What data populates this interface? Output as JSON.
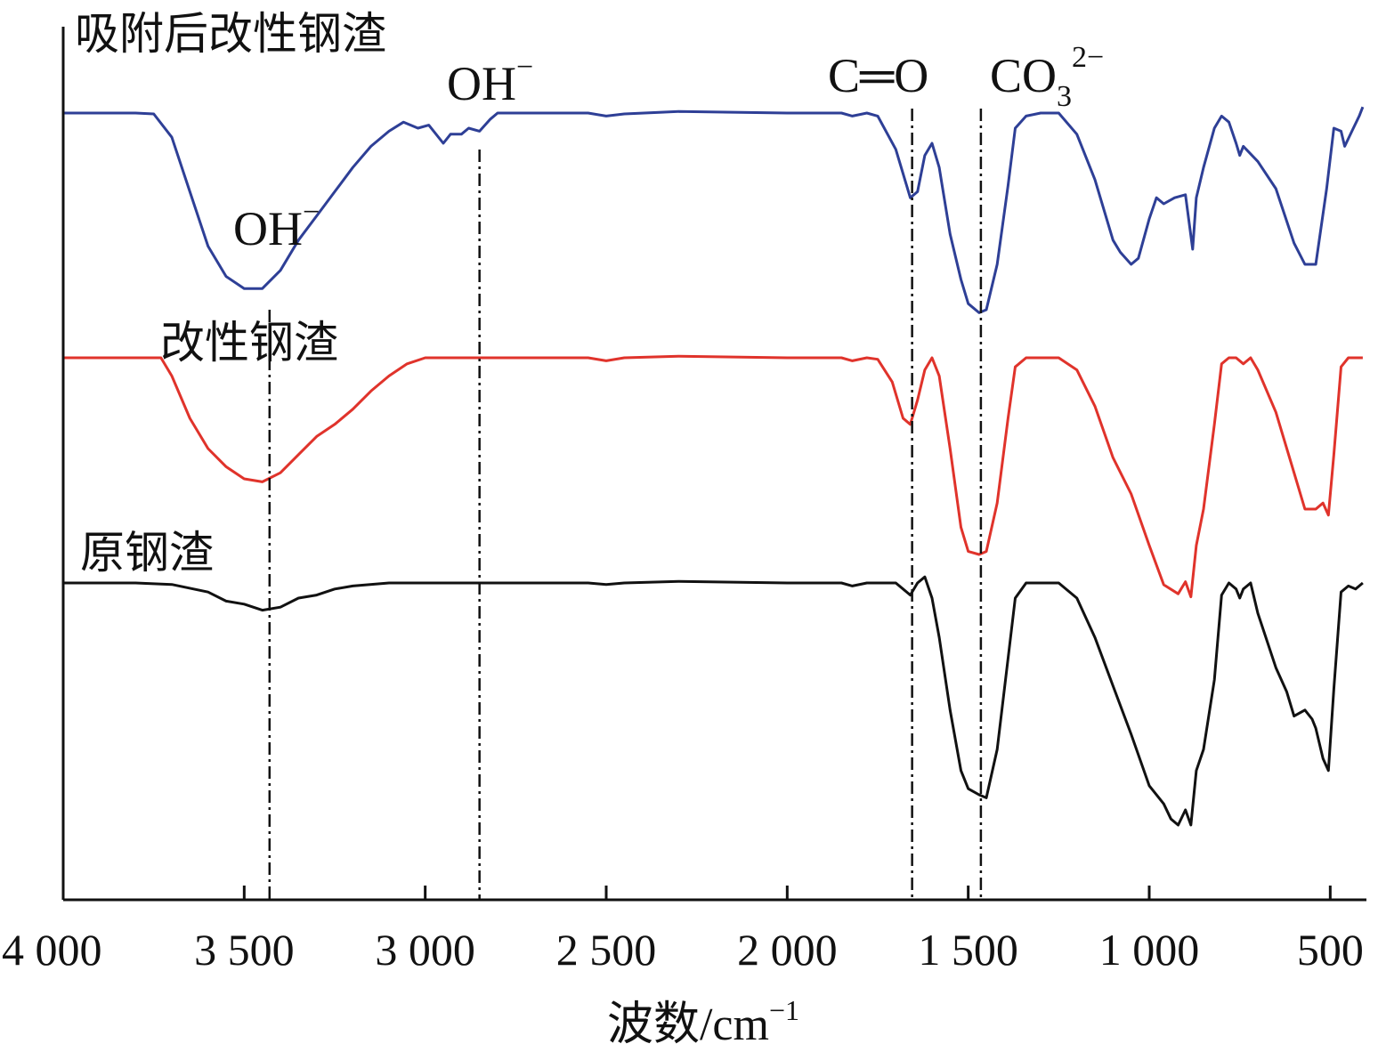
{
  "chart_data": {
    "type": "line",
    "title": "",
    "xlabel": "波数/cm⁻¹",
    "xlabel_base": "波数/cm",
    "xlabel_sup": "−1",
    "ylabel": "",
    "xlim": [
      4000,
      400
    ],
    "x_reversed": true,
    "x_ticks": [
      4000,
      3500,
      3000,
      2500,
      2000,
      1500,
      1000,
      500
    ],
    "x_tick_labels": [
      "4 000",
      "3 500",
      "3 000",
      "2 500",
      "2 000",
      "1 500",
      "1 000",
      "500"
    ],
    "y_ticks_shown": false,
    "grid": false,
    "series": [
      {
        "name": "吸附后改性钢渣",
        "color": "#2e3f96",
        "points": [
          [
            4000,
            0
          ],
          [
            3800,
            0
          ],
          [
            3750,
            -0.3
          ],
          [
            3700,
            -8
          ],
          [
            3650,
            -26
          ],
          [
            3600,
            -44
          ],
          [
            3550,
            -54
          ],
          [
            3500,
            -58
          ],
          [
            3450,
            -58
          ],
          [
            3400,
            -52
          ],
          [
            3350,
            -42
          ],
          [
            3300,
            -34
          ],
          [
            3250,
            -26
          ],
          [
            3200,
            -18
          ],
          [
            3150,
            -11
          ],
          [
            3100,
            -6
          ],
          [
            3060,
            -3
          ],
          [
            3020,
            -5
          ],
          [
            2990,
            -4
          ],
          [
            2950,
            -10
          ],
          [
            2930,
            -7
          ],
          [
            2900,
            -7
          ],
          [
            2880,
            -5
          ],
          [
            2850,
            -6
          ],
          [
            2820,
            -2
          ],
          [
            2800,
            0
          ],
          [
            2700,
            0
          ],
          [
            2550,
            0
          ],
          [
            2500,
            -1
          ],
          [
            2450,
            -0.3
          ],
          [
            2300,
            0.5
          ],
          [
            2000,
            0
          ],
          [
            1850,
            0
          ],
          [
            1820,
            -1
          ],
          [
            1780,
            0
          ],
          [
            1750,
            -1
          ],
          [
            1700,
            -12
          ],
          [
            1660,
            -28
          ],
          [
            1640,
            -26
          ],
          [
            1620,
            -14
          ],
          [
            1600,
            -10
          ],
          [
            1580,
            -18
          ],
          [
            1550,
            -40
          ],
          [
            1520,
            -55
          ],
          [
            1500,
            -63
          ],
          [
            1470,
            -66
          ],
          [
            1450,
            -65
          ],
          [
            1420,
            -50
          ],
          [
            1390,
            -24
          ],
          [
            1370,
            -5
          ],
          [
            1340,
            -1
          ],
          [
            1300,
            0
          ],
          [
            1250,
            0
          ],
          [
            1200,
            -7
          ],
          [
            1150,
            -22
          ],
          [
            1100,
            -42
          ],
          [
            1080,
            -46
          ],
          [
            1050,
            -50
          ],
          [
            1030,
            -48
          ],
          [
            1000,
            -35
          ],
          [
            980,
            -28
          ],
          [
            960,
            -30
          ],
          [
            930,
            -28
          ],
          [
            900,
            -27
          ],
          [
            880,
            -45
          ],
          [
            870,
            -28
          ],
          [
            850,
            -18
          ],
          [
            820,
            -5
          ],
          [
            800,
            -1
          ],
          [
            780,
            -3
          ],
          [
            760,
            -10
          ],
          [
            750,
            -14
          ],
          [
            740,
            -11
          ],
          [
            700,
            -16
          ],
          [
            650,
            -25
          ],
          [
            600,
            -43
          ],
          [
            570,
            -50
          ],
          [
            540,
            -50
          ],
          [
            510,
            -25
          ],
          [
            490,
            -5
          ],
          [
            470,
            -6
          ],
          [
            460,
            -11
          ],
          [
            440,
            -6
          ],
          [
            420,
            -1
          ],
          [
            410,
            2
          ]
        ]
      },
      {
        "name": "改性钢渣",
        "color": "#e0332b",
        "points": [
          [
            4000,
            0
          ],
          [
            3800,
            0
          ],
          [
            3730,
            0
          ],
          [
            3700,
            -6
          ],
          [
            3650,
            -20
          ],
          [
            3600,
            -30
          ],
          [
            3550,
            -36
          ],
          [
            3500,
            -40
          ],
          [
            3450,
            -41
          ],
          [
            3400,
            -38
          ],
          [
            3350,
            -32
          ],
          [
            3300,
            -26
          ],
          [
            3250,
            -22
          ],
          [
            3200,
            -17
          ],
          [
            3150,
            -11
          ],
          [
            3100,
            -6
          ],
          [
            3050,
            -2
          ],
          [
            3000,
            0
          ],
          [
            2950,
            0
          ],
          [
            2800,
            0
          ],
          [
            2600,
            0
          ],
          [
            2550,
            0
          ],
          [
            2500,
            -1
          ],
          [
            2450,
            0
          ],
          [
            2300,
            0.5
          ],
          [
            2000,
            0
          ],
          [
            1850,
            0
          ],
          [
            1820,
            -1
          ],
          [
            1780,
            0
          ],
          [
            1750,
            -0.5
          ],
          [
            1710,
            -8
          ],
          [
            1680,
            -20
          ],
          [
            1660,
            -22
          ],
          [
            1640,
            -14
          ],
          [
            1620,
            -4
          ],
          [
            1600,
            0
          ],
          [
            1580,
            -6
          ],
          [
            1550,
            -30
          ],
          [
            1520,
            -56
          ],
          [
            1500,
            -64
          ],
          [
            1470,
            -65
          ],
          [
            1450,
            -64
          ],
          [
            1420,
            -48
          ],
          [
            1390,
            -20
          ],
          [
            1370,
            -3
          ],
          [
            1340,
            0
          ],
          [
            1300,
            0
          ],
          [
            1250,
            0
          ],
          [
            1200,
            -4
          ],
          [
            1150,
            -16
          ],
          [
            1100,
            -33
          ],
          [
            1050,
            -45
          ],
          [
            1000,
            -62
          ],
          [
            960,
            -75
          ],
          [
            920,
            -78
          ],
          [
            900,
            -74
          ],
          [
            885,
            -79
          ],
          [
            870,
            -62
          ],
          [
            850,
            -50
          ],
          [
            820,
            -22
          ],
          [
            800,
            -2
          ],
          [
            780,
            0
          ],
          [
            760,
            0
          ],
          [
            740,
            -2
          ],
          [
            720,
            0
          ],
          [
            700,
            -4
          ],
          [
            650,
            -18
          ],
          [
            600,
            -38
          ],
          [
            570,
            -50
          ],
          [
            540,
            -50
          ],
          [
            520,
            -48
          ],
          [
            505,
            -52
          ],
          [
            490,
            -32
          ],
          [
            470,
            -3
          ],
          [
            450,
            0
          ],
          [
            420,
            0
          ],
          [
            410,
            0
          ]
        ]
      },
      {
        "name": "原钢渣",
        "color": "#111111",
        "points": [
          [
            4000,
            0
          ],
          [
            3800,
            0
          ],
          [
            3700,
            -0.5
          ],
          [
            3600,
            -3
          ],
          [
            3550,
            -6
          ],
          [
            3500,
            -7
          ],
          [
            3450,
            -9
          ],
          [
            3400,
            -8
          ],
          [
            3350,
            -5
          ],
          [
            3300,
            -4
          ],
          [
            3250,
            -2
          ],
          [
            3200,
            -1
          ],
          [
            3100,
            0
          ],
          [
            3000,
            0
          ],
          [
            2800,
            0
          ],
          [
            2550,
            0
          ],
          [
            2500,
            -0.5
          ],
          [
            2450,
            0
          ],
          [
            2300,
            0.5
          ],
          [
            2000,
            0
          ],
          [
            1850,
            0
          ],
          [
            1820,
            -1
          ],
          [
            1780,
            0
          ],
          [
            1750,
            0
          ],
          [
            1700,
            0
          ],
          [
            1680,
            -2
          ],
          [
            1660,
            -4
          ],
          [
            1640,
            0
          ],
          [
            1620,
            2
          ],
          [
            1600,
            -5
          ],
          [
            1580,
            -18
          ],
          [
            1550,
            -42
          ],
          [
            1520,
            -62
          ],
          [
            1500,
            -68
          ],
          [
            1470,
            -70
          ],
          [
            1450,
            -71
          ],
          [
            1420,
            -55
          ],
          [
            1390,
            -25
          ],
          [
            1370,
            -5
          ],
          [
            1340,
            0
          ],
          [
            1300,
            0
          ],
          [
            1250,
            0
          ],
          [
            1200,
            -5
          ],
          [
            1150,
            -18
          ],
          [
            1100,
            -34
          ],
          [
            1050,
            -50
          ],
          [
            1000,
            -67
          ],
          [
            960,
            -73
          ],
          [
            940,
            -78
          ],
          [
            920,
            -80
          ],
          [
            900,
            -75
          ],
          [
            885,
            -80
          ],
          [
            870,
            -62
          ],
          [
            850,
            -55
          ],
          [
            820,
            -32
          ],
          [
            800,
            -4
          ],
          [
            780,
            0
          ],
          [
            760,
            -2
          ],
          [
            750,
            -5
          ],
          [
            740,
            -2
          ],
          [
            720,
            0
          ],
          [
            700,
            -10
          ],
          [
            650,
            -28
          ],
          [
            620,
            -36
          ],
          [
            600,
            -44
          ],
          [
            570,
            -42
          ],
          [
            550,
            -45
          ],
          [
            540,
            -48
          ],
          [
            520,
            -58
          ],
          [
            505,
            -62
          ],
          [
            490,
            -35
          ],
          [
            470,
            -3
          ],
          [
            450,
            -1
          ],
          [
            430,
            -2
          ],
          [
            410,
            0
          ]
        ]
      }
    ],
    "series_labels": [
      {
        "text": "吸附后改性钢渣",
        "series": 0
      },
      {
        "text": "改性钢渣",
        "series": 1
      },
      {
        "text": "原钢渣",
        "series": 2
      }
    ],
    "reference_lines": [
      {
        "x": 3430,
        "label": "OH",
        "label_sup": "−",
        "label_near": "top curve minimum"
      },
      {
        "x": 2850,
        "label": "OH",
        "label_sup": "−",
        "label_near": "top"
      },
      {
        "x": 1655,
        "label": "C═O",
        "label_sup": "",
        "label_near": "top"
      },
      {
        "x": 1465,
        "label": "CO",
        "label_sub": "3",
        "label_sup": "2−",
        "label_near": "top"
      }
    ]
  }
}
